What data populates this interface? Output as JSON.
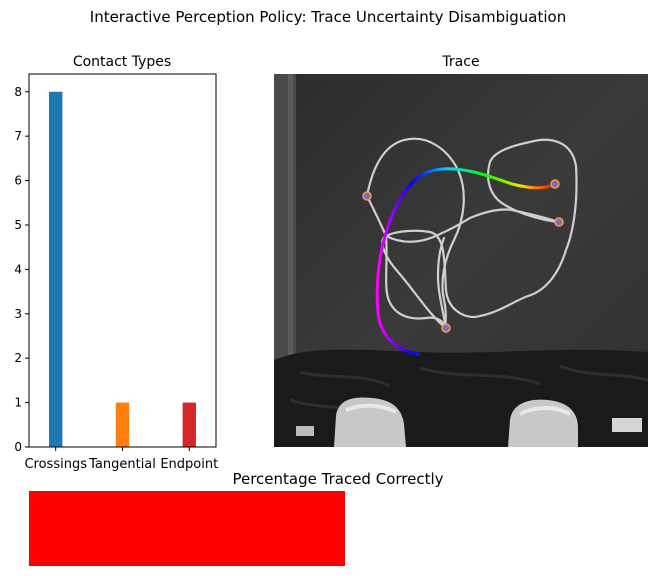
{
  "suptitle": "Interactive Perception Policy: Trace Uncertainty Disambiguation",
  "chart_data": [
    {
      "type": "bar",
      "title": "Contact Types",
      "categories": [
        "Crossings",
        "Tangential",
        "Endpoint"
      ],
      "values": [
        8,
        1,
        1
      ],
      "colors": [
        "#1f77b4",
        "#ff7f0e",
        "#d62728"
      ],
      "ylim": [
        0,
        8.4
      ],
      "yticks": [
        0,
        1,
        2,
        3,
        4,
        5,
        6,
        7,
        8
      ],
      "xlabel": "",
      "ylabel": ""
    },
    {
      "type": "image",
      "title": "Trace"
    },
    {
      "type": "bar",
      "title": "Percentage Traced Correctly",
      "bar_color": "#ff0000"
    }
  ]
}
